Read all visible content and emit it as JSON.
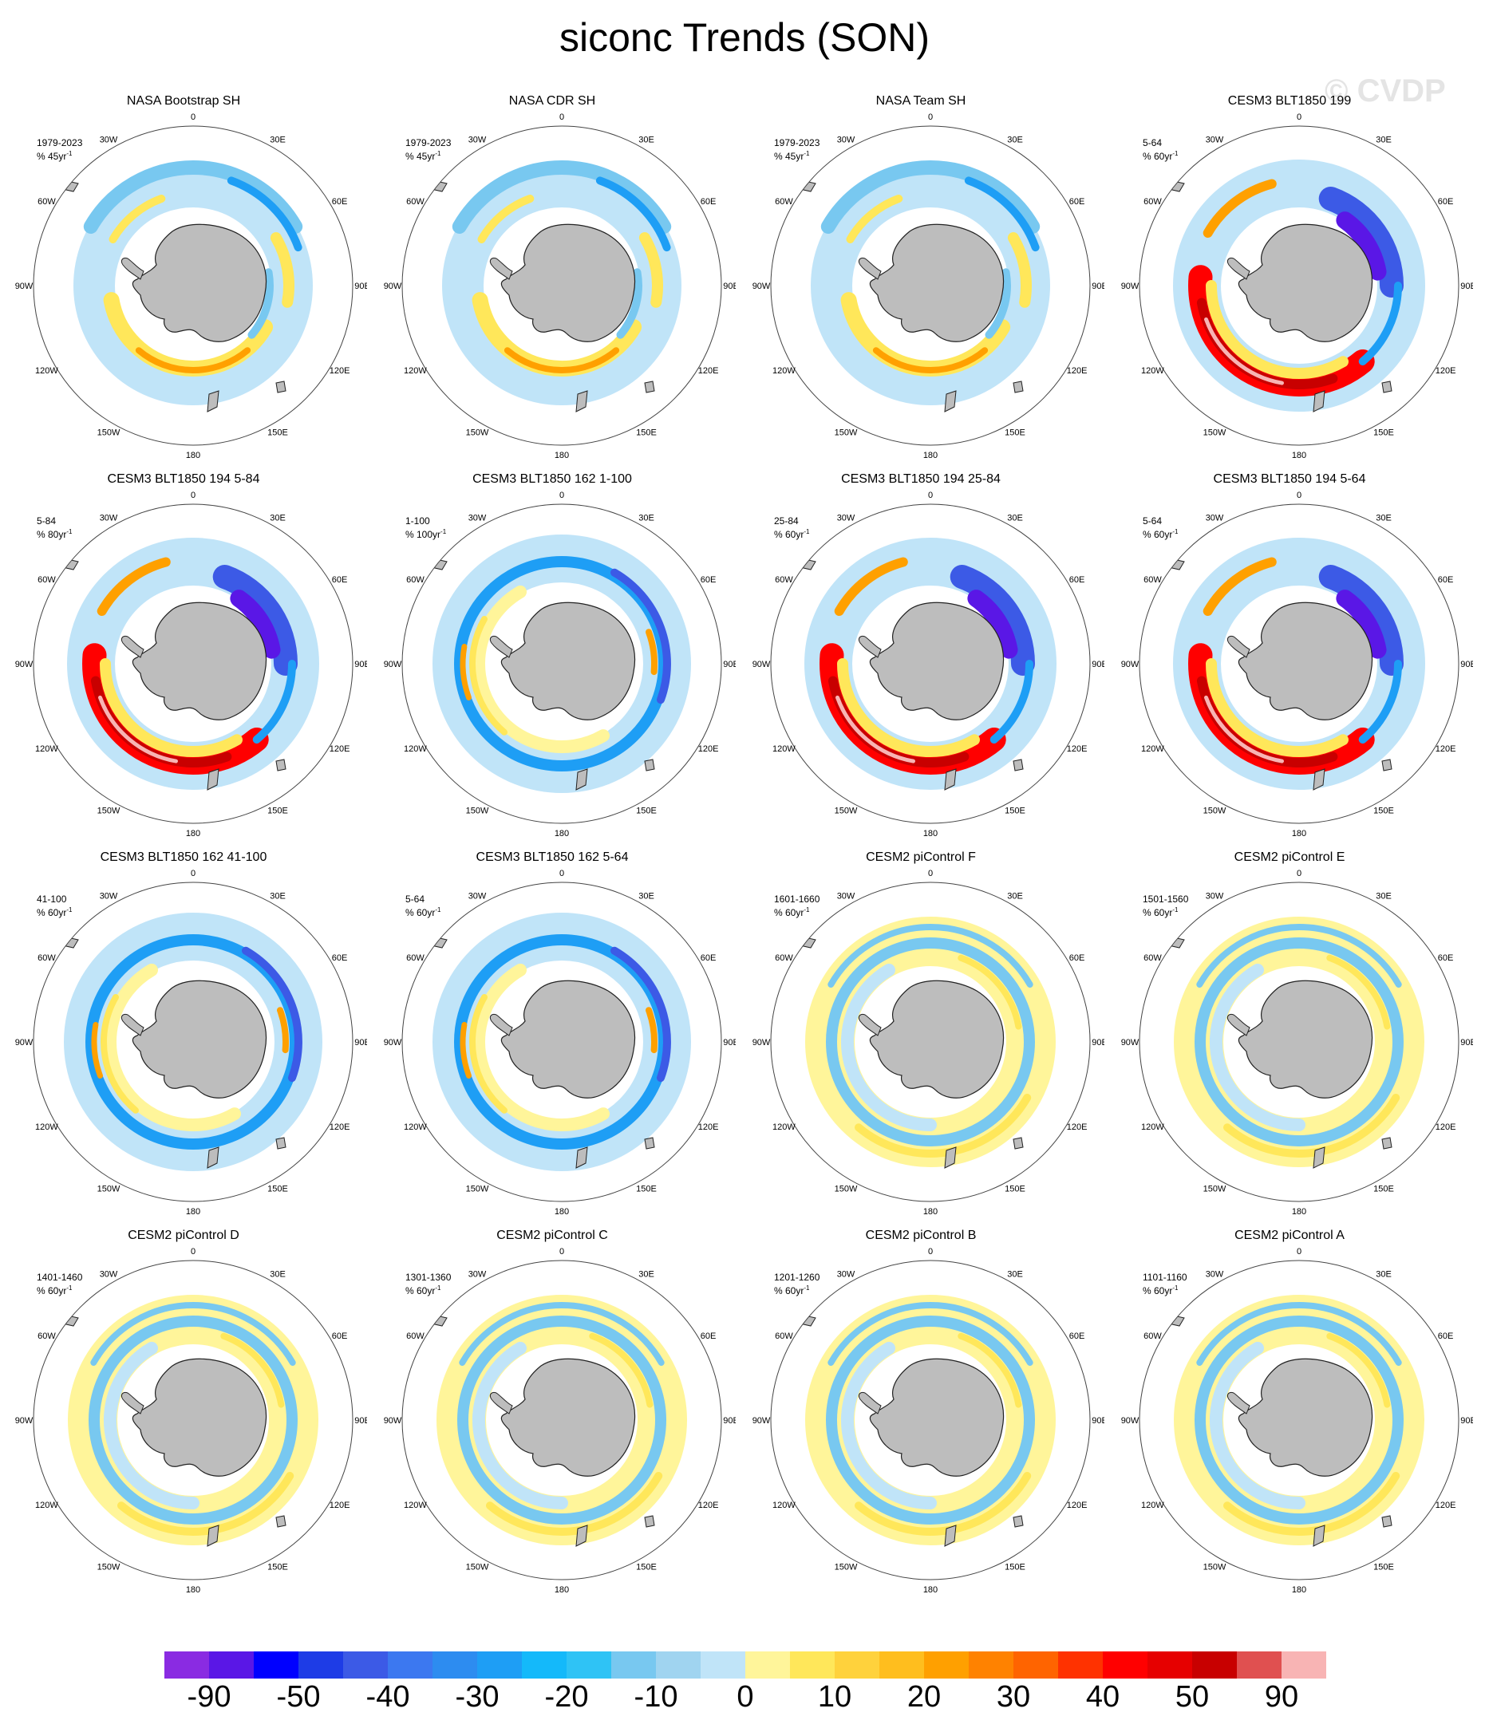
{
  "title": "siconc Trends (SON)",
  "watermark": "© CVDP",
  "map_labels": {
    "lon_ticks": [
      "0",
      "30E",
      "60E",
      "90E",
      "120E",
      "150E",
      "180",
      "150W",
      "120W",
      "90W",
      "60W",
      "30W"
    ]
  },
  "colorbar": {
    "colors": [
      "#8a2be2",
      "#5a17e6",
      "#0000ff",
      "#1e3ce6",
      "#3c5ae6",
      "#3c78f0",
      "#2d8cf0",
      "#1e9ef5",
      "#14b9fa",
      "#2fc3f5",
      "#78c8f0",
      "#a0d4f0",
      "#c0e4f8",
      "#fff59a",
      "#ffe75a",
      "#ffd23c",
      "#ffbe1e",
      "#ffa000",
      "#ff8200",
      "#ff6400",
      "#ff3200",
      "#ff0000",
      "#e60000",
      "#c80000",
      "#e05050",
      "#f8b4b4"
    ],
    "labels": [
      "-90",
      "-50",
      "-40",
      "-30",
      "-20",
      "-10",
      "0",
      "10",
      "20",
      "30",
      "40",
      "50",
      "90"
    ]
  },
  "panels": [
    {
      "title": "NASA Bootstrap SH",
      "period": "1979-2023",
      "units_base": "% 45yr",
      "units_exp": "-1",
      "pattern": "obs"
    },
    {
      "title": "NASA CDR SH",
      "period": "1979-2023",
      "units_base": "% 45yr",
      "units_exp": "-1",
      "pattern": "obs"
    },
    {
      "title": "NASA Team SH",
      "period": "1979-2023",
      "units_base": "% 45yr",
      "units_exp": "-1",
      "pattern": "obs"
    },
    {
      "title": "CESM3 BLT1850 199",
      "period": "5-64",
      "units_base": "% 60yr",
      "units_exp": "-1",
      "pattern": "strong"
    },
    {
      "title": "CESM3 BLT1850 194 5-84",
      "period": "5-84",
      "units_base": "% 80yr",
      "units_exp": "-1",
      "pattern": "strong"
    },
    {
      "title": "CESM3 BLT1850 162 1-100",
      "period": "1-100",
      "units_base": "% 100yr",
      "units_exp": "-1",
      "pattern": "blue"
    },
    {
      "title": "CESM3 BLT1850 194 25-84",
      "period": "25-84",
      "units_base": "% 60yr",
      "units_exp": "-1",
      "pattern": "strong"
    },
    {
      "title": "CESM3 BLT1850 194 5-64",
      "period": "5-64",
      "units_base": "% 60yr",
      "units_exp": "-1",
      "pattern": "strong"
    },
    {
      "title": "CESM3 BLT1850 162 41-100",
      "period": "41-100",
      "units_base": "% 60yr",
      "units_exp": "-1",
      "pattern": "blue"
    },
    {
      "title": "CESM3 BLT1850 162 5-64",
      "period": "5-64",
      "units_base": "% 60yr",
      "units_exp": "-1",
      "pattern": "blue"
    },
    {
      "title": "CESM2 piControl F",
      "period": "1601-1660",
      "units_base": "% 60yr",
      "units_exp": "-1",
      "pattern": "weak"
    },
    {
      "title": "CESM2 piControl E",
      "period": "1501-1560",
      "units_base": "% 60yr",
      "units_exp": "-1",
      "pattern": "weak"
    },
    {
      "title": "CESM2 piControl D",
      "period": "1401-1460",
      "units_base": "% 60yr",
      "units_exp": "-1",
      "pattern": "weak"
    },
    {
      "title": "CESM2 piControl C",
      "period": "1301-1360",
      "units_base": "% 60yr",
      "units_exp": "-1",
      "pattern": "weak"
    },
    {
      "title": "CESM2 piControl B",
      "period": "1201-1260",
      "units_base": "% 60yr",
      "units_exp": "-1",
      "pattern": "weak"
    },
    {
      "title": "CESM2 piControl A",
      "period": "1101-1160",
      "units_base": "% 60yr",
      "units_exp": "-1",
      "pattern": "weak"
    }
  ]
}
